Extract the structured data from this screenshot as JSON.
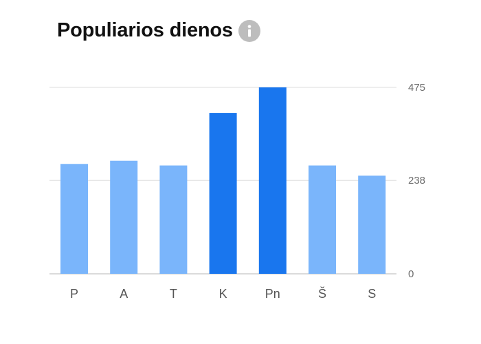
{
  "header": {
    "title": "Populiarios dienos",
    "info_icon": "info-icon"
  },
  "colors": {
    "bar_normal": "#7ab5fb",
    "bar_highlight": "#1976ee",
    "grid": "#e3e3e3",
    "baseline": "#cfcfcf"
  },
  "chart_data": {
    "type": "bar",
    "title": "Populiarios dienos",
    "categories": [
      "P",
      "A",
      "T",
      "K",
      "Pn",
      "Š",
      "S"
    ],
    "values": [
      280,
      288,
      276,
      410,
      475,
      276,
      250
    ],
    "highlighted": [
      false,
      false,
      false,
      true,
      true,
      false,
      false
    ],
    "y_ticks": [
      {
        "value": 0,
        "label": "0"
      },
      {
        "value": 238,
        "label": "238"
      },
      {
        "value": 475,
        "label": "475"
      }
    ],
    "ylim": [
      0,
      475
    ],
    "grid": true,
    "y_axis_position": "right"
  }
}
